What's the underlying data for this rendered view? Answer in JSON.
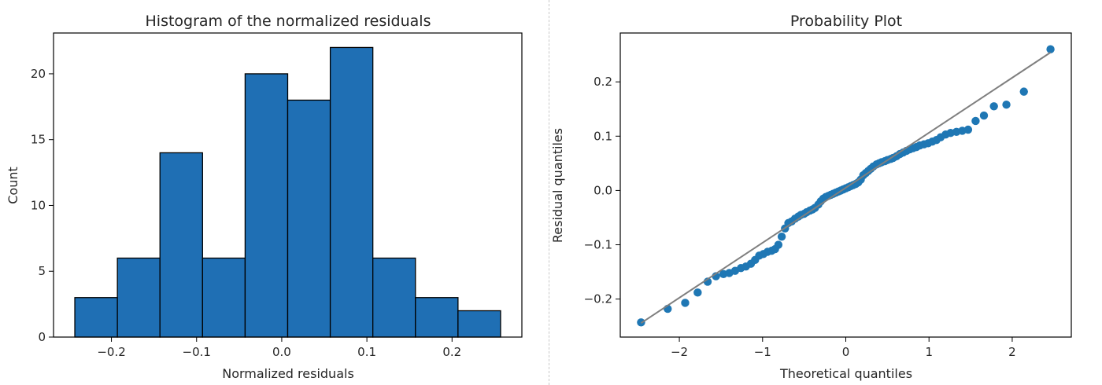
{
  "colors": {
    "bar": "#1f6fb4",
    "bar_edge": "#000000",
    "point": "#1f77b4",
    "fit_line": "#7f7f7f"
  },
  "chart_data": [
    {
      "type": "bar",
      "title": "Histogram of the normalized residuals",
      "xlabel": "Normalized residuals",
      "ylabel": "Count",
      "bins": [
        {
          "x0": -0.243,
          "x1": -0.193,
          "count": 3
        },
        {
          "x0": -0.193,
          "x1": -0.143,
          "count": 6
        },
        {
          "x0": -0.143,
          "x1": -0.093,
          "count": 14
        },
        {
          "x0": -0.093,
          "x1": -0.043,
          "count": 6
        },
        {
          "x0": -0.043,
          "x1": 0.007,
          "count": 20
        },
        {
          "x0": 0.007,
          "x1": 0.057,
          "count": 18
        },
        {
          "x0": 0.057,
          "x1": 0.107,
          "count": 22
        },
        {
          "x0": 0.107,
          "x1": 0.157,
          "count": 6
        },
        {
          "x0": 0.157,
          "x1": 0.207,
          "count": 3
        },
        {
          "x0": 0.207,
          "x1": 0.257,
          "count": 2
        }
      ],
      "xlim": [
        -0.268,
        0.282
      ],
      "ylim": [
        0,
        23.1
      ],
      "xticks": [
        -0.2,
        -0.1,
        0.0,
        0.1,
        0.2
      ],
      "xtick_labels": [
        "−0.2",
        "−0.1",
        "0.0",
        "0.1",
        "0.2"
      ],
      "yticks": [
        0,
        5,
        10,
        15,
        20
      ],
      "ytick_labels": [
        "0",
        "5",
        "10",
        "15",
        "20"
      ],
      "grid": false
    },
    {
      "type": "scatter",
      "title": "Probability Plot",
      "xlabel": "Theoretical quantiles",
      "ylabel": "Residual quantiles",
      "points": [
        [
          -2.46,
          -0.243
        ],
        [
          -2.14,
          -0.218
        ],
        [
          -1.93,
          -0.207
        ],
        [
          -1.78,
          -0.188
        ],
        [
          -1.66,
          -0.168
        ],
        [
          -1.56,
          -0.158
        ],
        [
          -1.47,
          -0.154
        ],
        [
          -1.4,
          -0.152
        ],
        [
          -1.33,
          -0.148
        ],
        [
          -1.26,
          -0.143
        ],
        [
          -1.2,
          -0.14
        ],
        [
          -1.14,
          -0.135
        ],
        [
          -1.09,
          -0.128
        ],
        [
          -1.04,
          -0.12
        ],
        [
          -0.99,
          -0.117
        ],
        [
          -0.94,
          -0.113
        ],
        [
          -0.89,
          -0.111
        ],
        [
          -0.85,
          -0.108
        ],
        [
          -0.81,
          -0.1
        ],
        [
          -0.77,
          -0.085
        ],
        [
          -0.73,
          -0.07
        ],
        [
          -0.69,
          -0.06
        ],
        [
          -0.65,
          -0.057
        ],
        [
          -0.61,
          -0.052
        ],
        [
          -0.57,
          -0.048
        ],
        [
          -0.54,
          -0.045
        ],
        [
          -0.5,
          -0.043
        ],
        [
          -0.47,
          -0.04
        ],
        [
          -0.43,
          -0.037
        ],
        [
          -0.4,
          -0.035
        ],
        [
          -0.37,
          -0.032
        ],
        [
          -0.33,
          -0.026
        ],
        [
          -0.3,
          -0.02
        ],
        [
          -0.27,
          -0.015
        ],
        [
          -0.24,
          -0.012
        ],
        [
          -0.21,
          -0.01
        ],
        [
          -0.18,
          -0.008
        ],
        [
          -0.15,
          -0.006
        ],
        [
          -0.12,
          -0.004
        ],
        [
          -0.09,
          -0.002
        ],
        [
          -0.06,
          0.0
        ],
        [
          -0.03,
          0.002
        ],
        [
          0.0,
          0.004
        ],
        [
          0.03,
          0.006
        ],
        [
          0.06,
          0.008
        ],
        [
          0.09,
          0.01
        ],
        [
          0.12,
          0.012
        ],
        [
          0.15,
          0.015
        ],
        [
          0.18,
          0.02
        ],
        [
          0.21,
          0.028
        ],
        [
          0.24,
          0.032
        ],
        [
          0.27,
          0.036
        ],
        [
          0.3,
          0.04
        ],
        [
          0.33,
          0.044
        ],
        [
          0.37,
          0.048
        ],
        [
          0.4,
          0.05
        ],
        [
          0.43,
          0.052
        ],
        [
          0.47,
          0.054
        ],
        [
          0.5,
          0.056
        ],
        [
          0.54,
          0.058
        ],
        [
          0.57,
          0.06
        ],
        [
          0.61,
          0.063
        ],
        [
          0.65,
          0.067
        ],
        [
          0.69,
          0.07
        ],
        [
          0.73,
          0.073
        ],
        [
          0.77,
          0.076
        ],
        [
          0.81,
          0.078
        ],
        [
          0.85,
          0.08
        ],
        [
          0.89,
          0.083
        ],
        [
          0.94,
          0.085
        ],
        [
          0.99,
          0.087
        ],
        [
          1.04,
          0.09
        ],
        [
          1.09,
          0.093
        ],
        [
          1.14,
          0.098
        ],
        [
          1.2,
          0.103
        ],
        [
          1.26,
          0.106
        ],
        [
          1.33,
          0.108
        ],
        [
          1.4,
          0.11
        ],
        [
          1.47,
          0.112
        ],
        [
          1.56,
          0.128
        ],
        [
          1.66,
          0.138
        ],
        [
          1.78,
          0.155
        ],
        [
          1.93,
          0.158
        ],
        [
          2.14,
          0.182
        ],
        [
          2.46,
          0.26
        ]
      ],
      "fit_line": {
        "slope": 0.1013,
        "intercept": 0.005
      },
      "xlim": [
        -2.71,
        2.71
      ],
      "ylim": [
        -0.27,
        0.29
      ],
      "xticks": [
        -2,
        -1,
        0,
        1,
        2
      ],
      "xtick_labels": [
        "−2",
        "−1",
        "0",
        "1",
        "2"
      ],
      "yticks": [
        -0.2,
        -0.1,
        0.0,
        0.1,
        0.2
      ],
      "ytick_labels": [
        "−0.2",
        "−0.1",
        "0.0",
        "0.1",
        "0.2"
      ],
      "grid": false
    }
  ]
}
